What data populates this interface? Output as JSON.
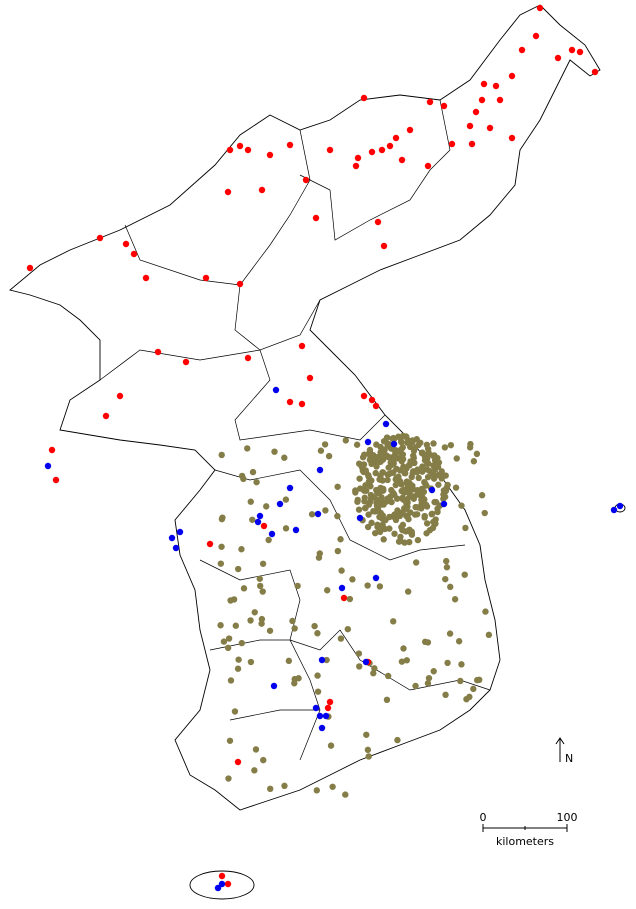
{
  "north_arrow": {
    "label": "N"
  },
  "scale_bar": {
    "start_label": "0",
    "end_label": "100",
    "unit": "kilometers"
  }
}
